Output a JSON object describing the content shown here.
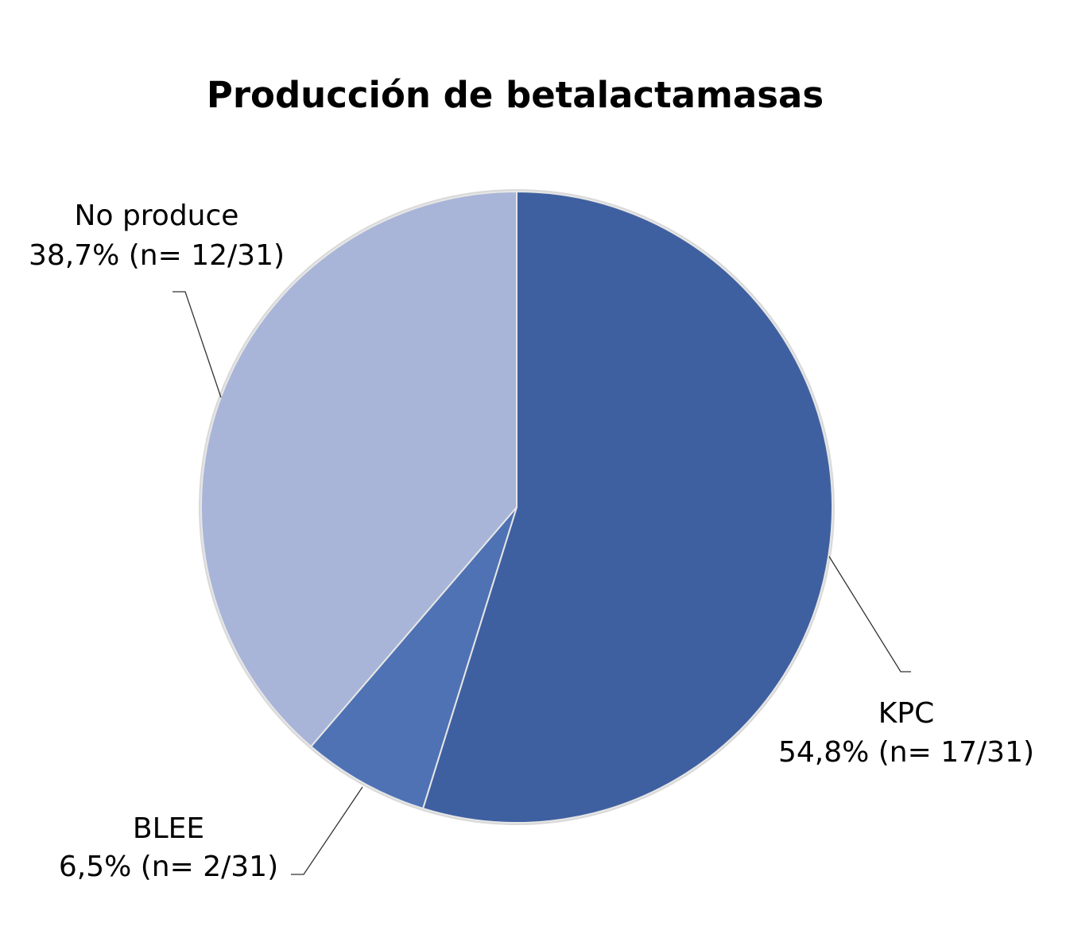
{
  "chart_data": {
    "type": "pie",
    "title": "Producción de betalactamasas",
    "slices": [
      {
        "name": "KPC",
        "value": 54.8,
        "count": "17/31",
        "label": "54,8% (n= 17/31)",
        "color": "#3f60a0"
      },
      {
        "name": "BLEE",
        "value": 6.5,
        "count": "2/31",
        "label": "6,5% (n= 2/31)",
        "color": "#4f72b4"
      },
      {
        "name": "No produce",
        "value": 38.7,
        "count": "12/31",
        "label": "38,7% (n= 12/31)",
        "color": "#a8b5d8"
      }
    ],
    "start_angle": "12 o'clock",
    "direction": "clockwise",
    "border_color": "#d9d9d9",
    "legend": "none"
  }
}
